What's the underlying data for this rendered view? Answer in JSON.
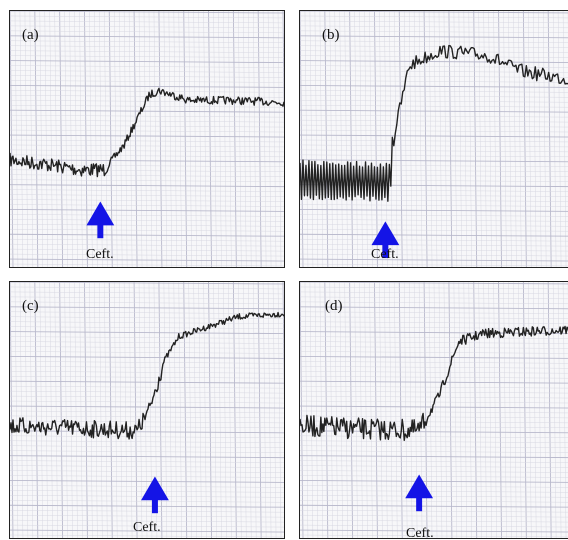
{
  "figure": {
    "panels": [
      {
        "id": "a",
        "label": "(a)",
        "marker_text": "Ceft."
      },
      {
        "id": "b",
        "label": "(b)",
        "marker_text": "Ceft."
      },
      {
        "id": "c",
        "label": "(c)",
        "marker_text": "Ceft."
      },
      {
        "id": "d",
        "label": "(d)",
        "marker_text": "Ceft."
      }
    ],
    "colors": {
      "trace": "#222222",
      "arrow": "#1414e6",
      "grid_minor": "#d8d8e2",
      "grid_major": "#b9b9cc",
      "paper": "#f7f7f9"
    },
    "icons": {
      "arrow": "up-arrow-icon"
    }
  }
}
